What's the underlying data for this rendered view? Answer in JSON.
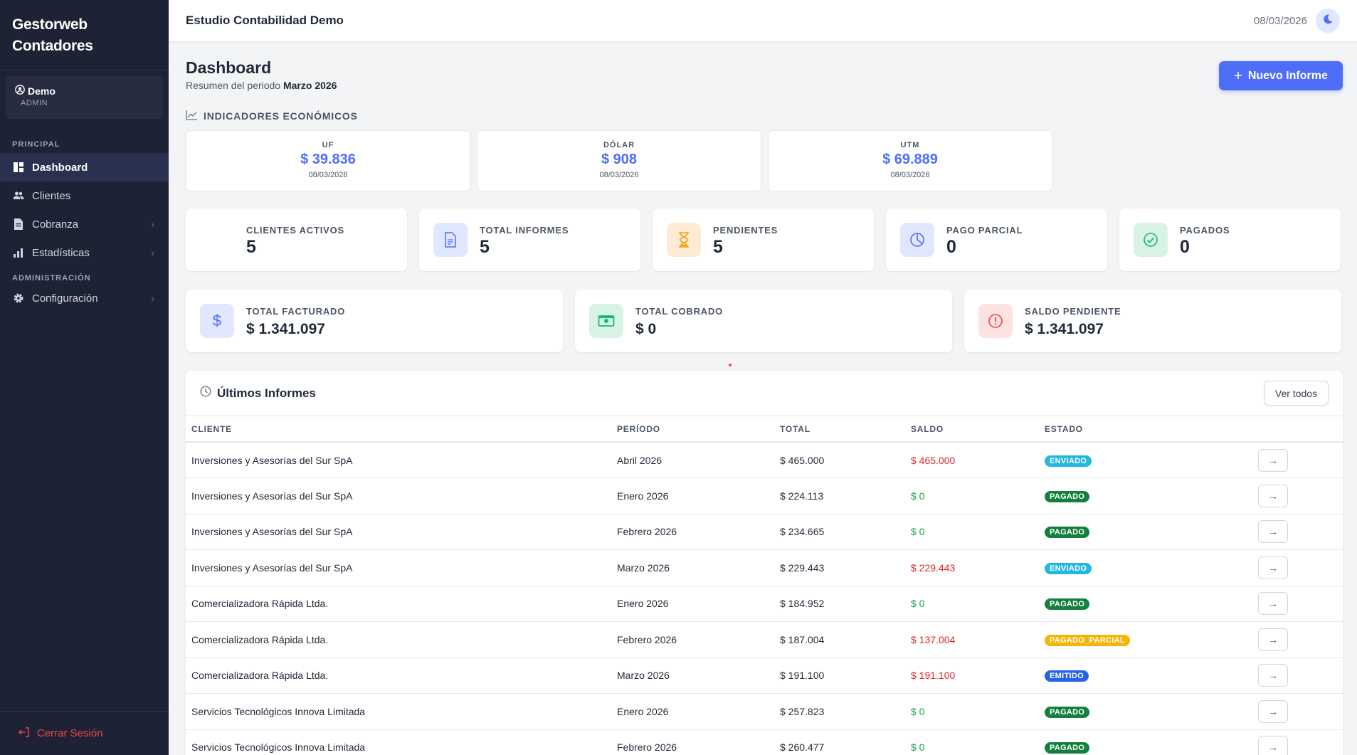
{
  "sidebar": {
    "brand_line1": "Gestorweb",
    "brand_line2": "Contadores",
    "user_name": "Demo",
    "user_role": "ADMIN",
    "section_principal": "PRINCIPAL",
    "section_admin": "ADMINISTRACIÓN",
    "items": [
      {
        "label": "Dashboard",
        "icon": "grid-icon",
        "active": true
      },
      {
        "label": "Clientes",
        "icon": "users-icon"
      },
      {
        "label": "Cobranza",
        "icon": "file-icon"
      },
      {
        "label": "Estadísticas",
        "icon": "bar-chart-icon"
      },
      {
        "label": "Configuración",
        "icon": "gear-icon"
      }
    ],
    "logout": "Cerrar Sesión"
  },
  "topbar": {
    "title": "Estudio Contabilidad Demo",
    "date": "08/03/2026"
  },
  "page": {
    "title": "Dashboard",
    "subtitle_prefix": "Resumen del periodo",
    "period": "Marzo 2026",
    "new_button": "Nuevo Informe"
  },
  "indicators": {
    "label": "INDICADORES ECONÓMICOS",
    "items": [
      {
        "name": "UF",
        "value": "$ 39.836",
        "date": "08/03/2026"
      },
      {
        "name": "DÓLAR",
        "value": "$ 908",
        "date": "08/03/2026"
      },
      {
        "name": "UTM",
        "value": "$ 69.889",
        "date": "08/03/2026"
      }
    ]
  },
  "stats": [
    {
      "label": "CLIENTES ACTIVOS",
      "value": "5"
    },
    {
      "label": "TOTAL INFORMES",
      "value": "5"
    },
    {
      "label": "PENDIENTES",
      "value": "5"
    },
    {
      "label": "PAGO PARCIAL",
      "value": "0"
    },
    {
      "label": "PAGADOS",
      "value": "0"
    }
  ],
  "money": [
    {
      "label": "TOTAL FACTURADO",
      "value": "$ 1.341.097"
    },
    {
      "label": "TOTAL COBRADO",
      "value": "$ 0"
    },
    {
      "label": "SALDO PENDIENTE",
      "value": "$ 1.341.097"
    }
  ],
  "reports": {
    "title": "Últimos Informes",
    "view_all": "Ver todos",
    "columns": [
      "CLIENTE",
      "PERÍODO",
      "TOTAL",
      "SALDO",
      "ESTADO"
    ],
    "rows": [
      {
        "cliente": "Inversiones y Asesorías del Sur SpA",
        "periodo": "Abril 2026",
        "total": "$ 465.000",
        "saldo": "$ 465.000",
        "estado": "ENVIADO"
      },
      {
        "cliente": "Inversiones y Asesorías del Sur SpA",
        "periodo": "Enero 2026",
        "total": "$ 224.113",
        "saldo": "$ 0",
        "estado": "PAGADO"
      },
      {
        "cliente": "Inversiones y Asesorías del Sur SpA",
        "periodo": "Febrero 2026",
        "total": "$ 234.665",
        "saldo": "$ 0",
        "estado": "PAGADO"
      },
      {
        "cliente": "Inversiones y Asesorías del Sur SpA",
        "periodo": "Marzo 2026",
        "total": "$ 229.443",
        "saldo": "$ 229.443",
        "estado": "ENVIADO"
      },
      {
        "cliente": "Comercializadora Rápida Ltda.",
        "periodo": "Enero 2026",
        "total": "$ 184.952",
        "saldo": "$ 0",
        "estado": "PAGADO"
      },
      {
        "cliente": "Comercializadora Rápida Ltda.",
        "periodo": "Febrero 2026",
        "total": "$ 187.004",
        "saldo": "$ 137.004",
        "estado": "PAGADO_PARCIAL"
      },
      {
        "cliente": "Comercializadora Rápida Ltda.",
        "periodo": "Marzo 2026",
        "total": "$ 191.100",
        "saldo": "$ 191.100",
        "estado": "EMITIDO"
      },
      {
        "cliente": "Servicios Tecnológicos Innova Limitada",
        "periodo": "Enero 2026",
        "total": "$ 257.823",
        "saldo": "$ 0",
        "estado": "PAGADO"
      },
      {
        "cliente": "Servicios Tecnológicos Innova Limitada",
        "periodo": "Febrero 2026",
        "total": "$ 260.477",
        "saldo": "$ 0",
        "estado": "PAGADO"
      }
    ]
  },
  "colors": {
    "accent": "#4f6ef7",
    "sidebar_bg": "#1e2235",
    "danger": "#dc2626",
    "success": "#16a34a"
  }
}
